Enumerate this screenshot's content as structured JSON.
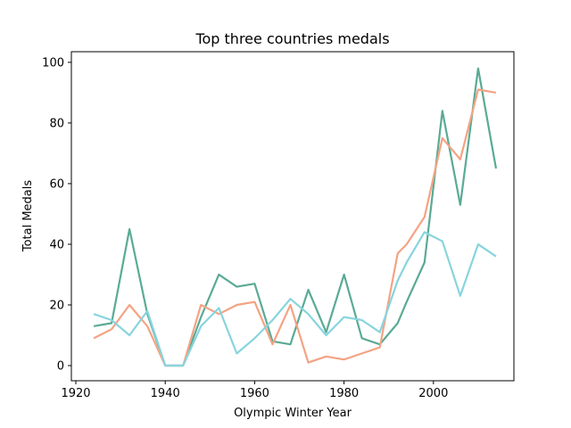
{
  "chart_data": {
    "type": "line",
    "title": "Top three countries medals",
    "xlabel": "Olympic Winter Year",
    "ylabel": "Total Medals",
    "xlim": [
      1919,
      2018
    ],
    "ylim": [
      -5,
      103.5
    ],
    "xticks": [
      1920,
      1940,
      1960,
      1980,
      2000
    ],
    "yticks": [
      0,
      20,
      40,
      60,
      80,
      100
    ],
    "grid": false,
    "legend": "none",
    "series": [
      {
        "color": "#5aaa95",
        "x": [
          1924,
          1928,
          1932,
          1936,
          1940,
          1944,
          1948,
          1952,
          1956,
          1960,
          1964,
          1968,
          1972,
          1976,
          1980,
          1984,
          1988,
          1992,
          1994,
          1998,
          2002,
          2006,
          2010,
          2014
        ],
        "y": [
          13,
          14,
          45,
          17,
          0,
          0,
          16,
          30,
          26,
          27,
          8,
          7,
          25,
          11,
          30,
          9,
          7,
          14,
          21,
          34,
          84,
          53,
          98,
          65
        ]
      },
      {
        "color": "#f4a384",
        "x": [
          1924,
          1928,
          1932,
          1936,
          1940,
          1944,
          1948,
          1952,
          1956,
          1960,
          1964,
          1968,
          1972,
          1976,
          1980,
          1984,
          1988,
          1992,
          1994,
          1998,
          2002,
          2006,
          2010,
          2014
        ],
        "y": [
          9,
          12,
          20,
          13,
          0,
          0,
          20,
          17,
          20,
          21,
          7,
          20,
          1,
          3,
          2,
          4,
          6,
          37,
          40,
          49,
          75,
          68,
          91,
          90
        ]
      },
      {
        "color": "#88d4de",
        "x": [
          1924,
          1928,
          1932,
          1936,
          1940,
          1944,
          1948,
          1952,
          1956,
          1960,
          1964,
          1968,
          1972,
          1976,
          1980,
          1984,
          1988,
          1992,
          1994,
          1998,
          2002,
          2006,
          2010,
          2014
        ],
        "y": [
          17,
          15,
          10,
          18,
          0,
          0,
          13,
          19,
          4,
          9,
          15,
          22,
          17,
          10,
          16,
          15,
          11,
          28,
          34,
          44,
          41,
          23,
          40,
          36
        ]
      }
    ]
  }
}
